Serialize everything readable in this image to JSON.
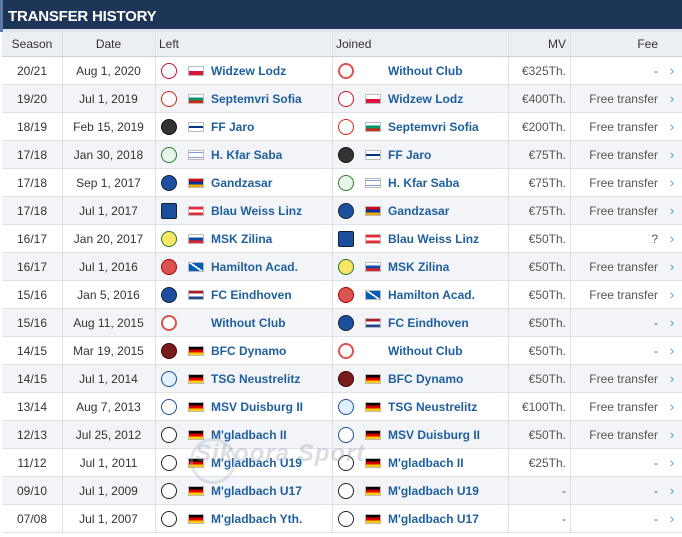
{
  "title": "TRANSFER HISTORY",
  "columns": {
    "season": "Season",
    "date": "Date",
    "left": "Left",
    "joined": "Joined",
    "mv": "MV",
    "fee": "Fee"
  },
  "watermark": "Sikoora Sport",
  "colors": {
    "header_bg": "#1d3557",
    "link": "#1f5f9e",
    "arrow": "#4aa3df"
  },
  "rows": [
    {
      "season": "20/21",
      "date": "Aug 1, 2020",
      "left": {
        "name": "Widzew Lodz",
        "flag": "poland",
        "crest": "widzew-crest"
      },
      "joined": {
        "name": "Without Club",
        "flag": "",
        "crest": "without-club-crest"
      },
      "mv": "€325Th.",
      "fee": "-"
    },
    {
      "season": "19/20",
      "date": "Jul 1, 2019",
      "left": {
        "name": "Septemvri Sofia",
        "flag": "bulgaria",
        "crest": "septemvri-crest"
      },
      "joined": {
        "name": "Widzew Lodz",
        "flag": "poland",
        "crest": "widzew-crest"
      },
      "mv": "€400Th.",
      "fee": "Free transfer"
    },
    {
      "season": "18/19",
      "date": "Feb 15, 2019",
      "left": {
        "name": "FF Jaro",
        "flag": "finland",
        "crest": "ff-jaro-crest"
      },
      "joined": {
        "name": "Septemvri Sofia",
        "flag": "bulgaria",
        "crest": "septemvri-crest"
      },
      "mv": "€200Th.",
      "fee": "Free transfer"
    },
    {
      "season": "17/18",
      "date": "Jan 30, 2018",
      "left": {
        "name": "H. Kfar Saba",
        "flag": "israel",
        "crest": "kfar-saba-crest"
      },
      "joined": {
        "name": "FF Jaro",
        "flag": "finland",
        "crest": "ff-jaro-crest"
      },
      "mv": "€75Th.",
      "fee": "Free transfer"
    },
    {
      "season": "17/18",
      "date": "Sep 1, 2017",
      "left": {
        "name": "Gandzasar",
        "flag": "armenia",
        "crest": "gandzasar-crest"
      },
      "joined": {
        "name": "H. Kfar Saba",
        "flag": "israel",
        "crest": "kfar-saba-crest"
      },
      "mv": "€75Th.",
      "fee": "Free transfer"
    },
    {
      "season": "17/18",
      "date": "Jul 1, 2017",
      "left": {
        "name": "Blau Weiss Linz",
        "flag": "austria",
        "crest": "blau-weiss-crest"
      },
      "joined": {
        "name": "Gandzasar",
        "flag": "armenia",
        "crest": "gandzasar-crest"
      },
      "mv": "€75Th.",
      "fee": "Free transfer"
    },
    {
      "season": "16/17",
      "date": "Jan 20, 2017",
      "left": {
        "name": "MSK Zilina",
        "flag": "slovakia",
        "crest": "zilina-crest"
      },
      "joined": {
        "name": "Blau Weiss Linz",
        "flag": "austria",
        "crest": "blau-weiss-crest"
      },
      "mv": "€50Th.",
      "fee": "?"
    },
    {
      "season": "16/17",
      "date": "Jul 1, 2016",
      "left": {
        "name": "Hamilton Acad.",
        "flag": "scotland",
        "crest": "hamilton-crest"
      },
      "joined": {
        "name": "MSK Zilina",
        "flag": "slovakia",
        "crest": "zilina-crest"
      },
      "mv": "€50Th.",
      "fee": "Free transfer"
    },
    {
      "season": "15/16",
      "date": "Jan 5, 2016",
      "left": {
        "name": "FC Eindhoven",
        "flag": "netherlands",
        "crest": "eindhoven-crest"
      },
      "joined": {
        "name": "Hamilton Acad.",
        "flag": "scotland",
        "crest": "hamilton-crest"
      },
      "mv": "€50Th.",
      "fee": "Free transfer"
    },
    {
      "season": "15/16",
      "date": "Aug 11, 2015",
      "left": {
        "name": "Without Club",
        "flag": "",
        "crest": "without-club-crest"
      },
      "joined": {
        "name": "FC Eindhoven",
        "flag": "netherlands",
        "crest": "eindhoven-crest"
      },
      "mv": "€50Th.",
      "fee": "-"
    },
    {
      "season": "14/15",
      "date": "Mar 19, 2015",
      "left": {
        "name": "BFC Dynamo",
        "flag": "germany",
        "crest": "bfc-dynamo-crest"
      },
      "joined": {
        "name": "Without Club",
        "flag": "",
        "crest": "without-club-crest"
      },
      "mv": "€50Th.",
      "fee": "-"
    },
    {
      "season": "14/15",
      "date": "Jul 1, 2014",
      "left": {
        "name": "TSG Neustrelitz",
        "flag": "germany",
        "crest": "neustrelitz-crest"
      },
      "joined": {
        "name": "BFC Dynamo",
        "flag": "germany",
        "crest": "bfc-dynamo-crest"
      },
      "mv": "€50Th.",
      "fee": "Free transfer"
    },
    {
      "season": "13/14",
      "date": "Aug 7, 2013",
      "left": {
        "name": "MSV Duisburg II",
        "flag": "germany",
        "crest": "duisburg-crest"
      },
      "joined": {
        "name": "TSG Neustrelitz",
        "flag": "germany",
        "crest": "neustrelitz-crest"
      },
      "mv": "€100Th.",
      "fee": "Free transfer"
    },
    {
      "season": "12/13",
      "date": "Jul 25, 2012",
      "left": {
        "name": "M'gladbach II",
        "flag": "germany",
        "crest": "gladbach-crest"
      },
      "joined": {
        "name": "MSV Duisburg II",
        "flag": "germany",
        "crest": "duisburg-crest"
      },
      "mv": "€50Th.",
      "fee": "Free transfer"
    },
    {
      "season": "11/12",
      "date": "Jul 1, 2011",
      "left": {
        "name": "M'gladbach U19",
        "flag": "germany",
        "crest": "gladbach-crest"
      },
      "joined": {
        "name": "M'gladbach II",
        "flag": "germany",
        "crest": "gladbach-crest"
      },
      "mv": "€25Th.",
      "fee": "-"
    },
    {
      "season": "09/10",
      "date": "Jul 1, 2009",
      "left": {
        "name": "M'gladbach U17",
        "flag": "germany",
        "crest": "gladbach-crest"
      },
      "joined": {
        "name": "M'gladbach U19",
        "flag": "germany",
        "crest": "gladbach-crest"
      },
      "mv": "-",
      "fee": "-"
    },
    {
      "season": "07/08",
      "date": "Jul 1, 2007",
      "left": {
        "name": "M'gladbach Yth.",
        "flag": "germany",
        "crest": "gladbach-crest"
      },
      "joined": {
        "name": "M'gladbach U17",
        "flag": "germany",
        "crest": "gladbach-crest"
      },
      "mv": "-",
      "fee": "-"
    }
  ]
}
